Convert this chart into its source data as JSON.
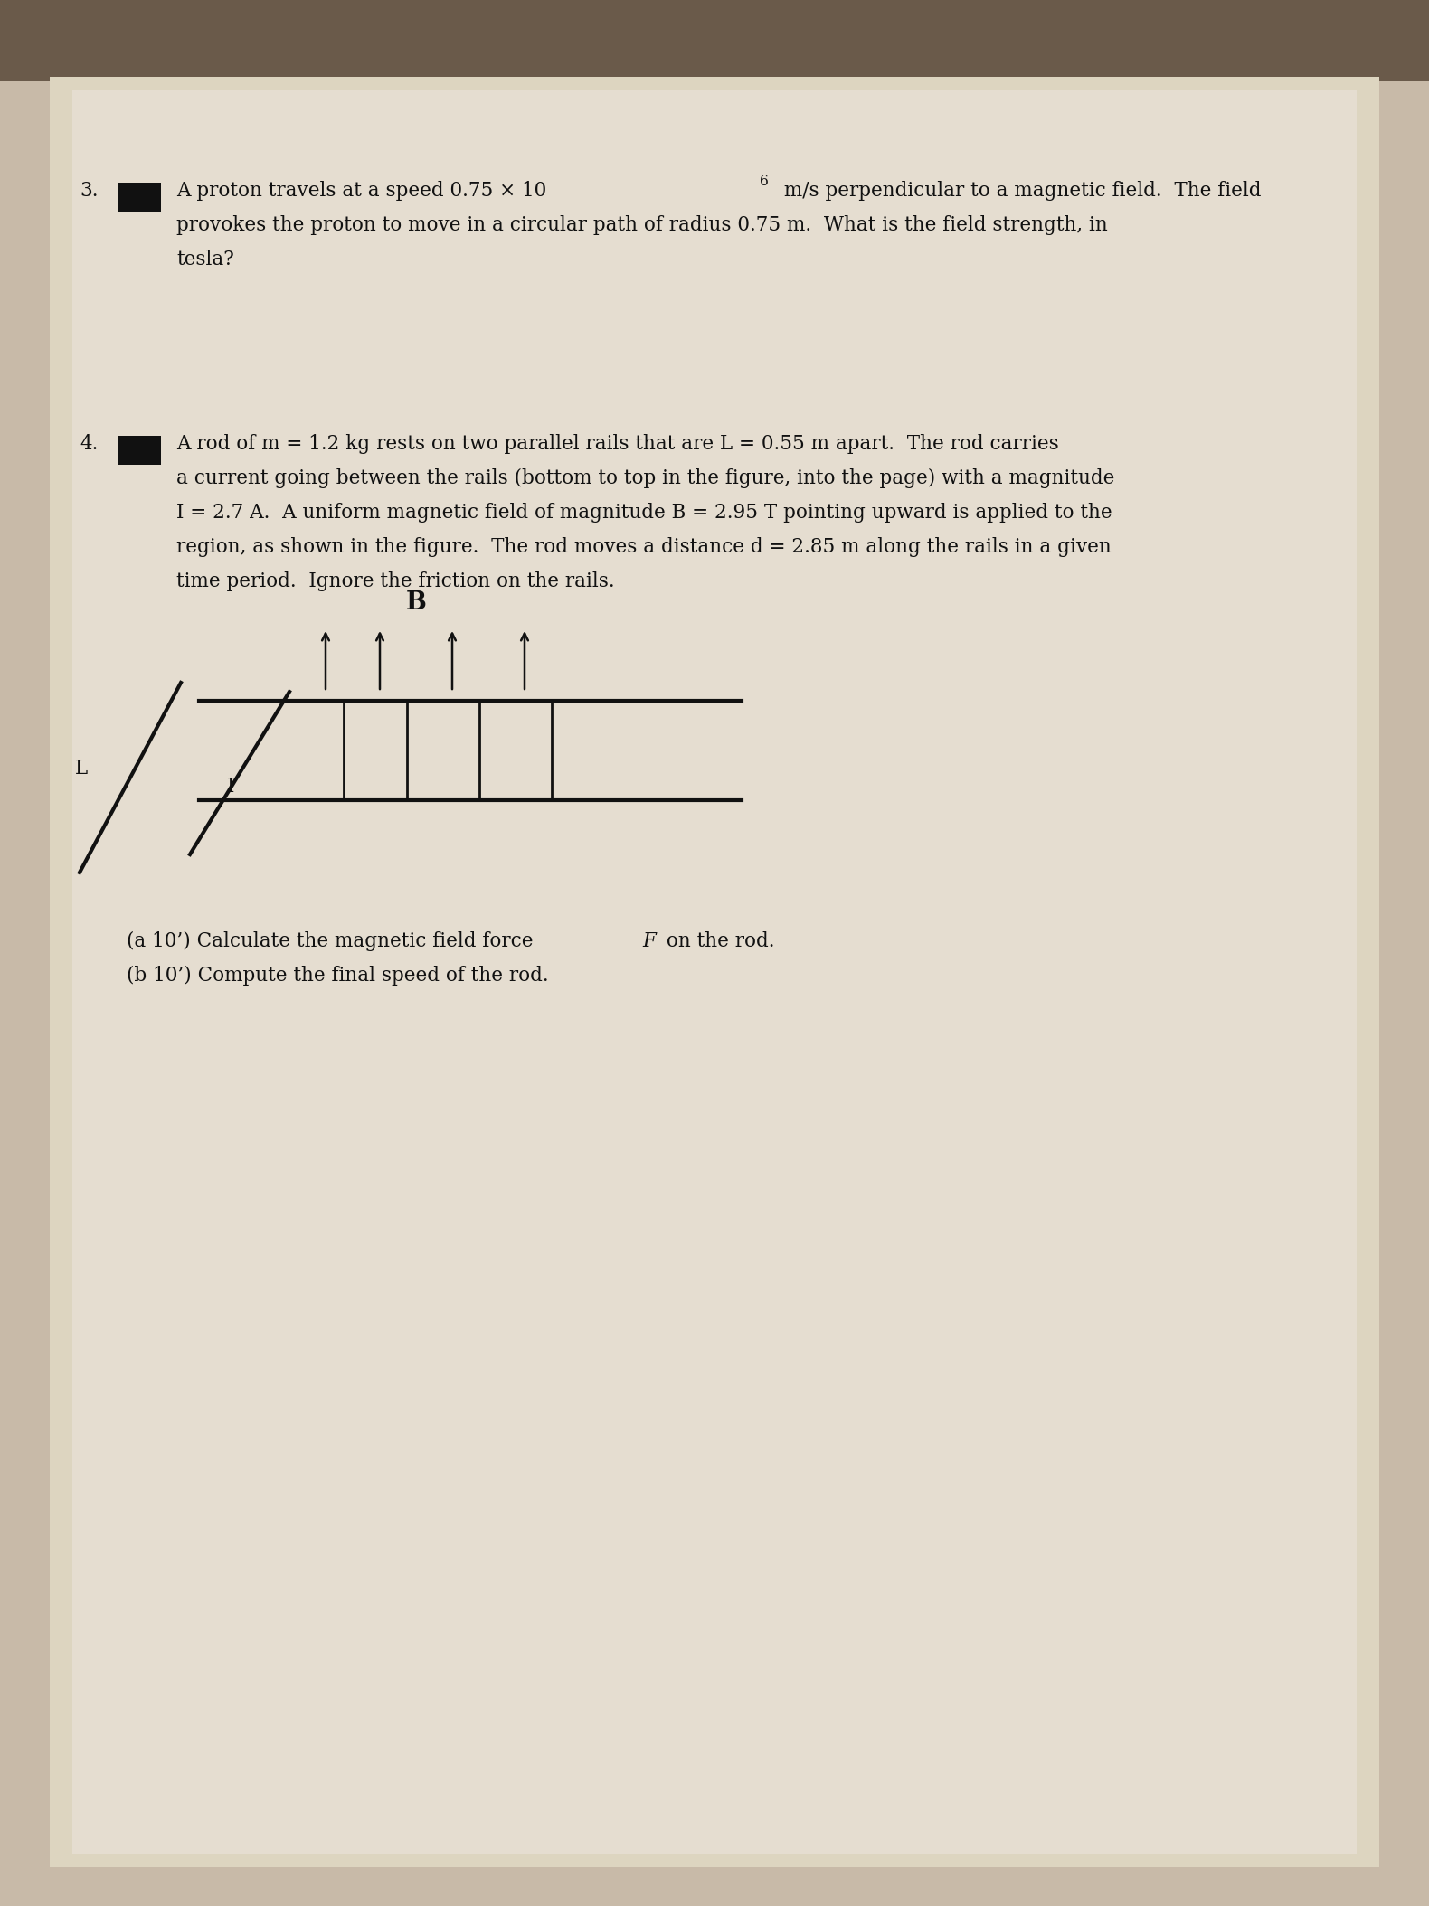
{
  "bg_top_color": "#8a7a6a",
  "bg_main_color": "#c8baa8",
  "paper_color": "#e8e0d0",
  "text_color": "#111111",
  "font_size_main": 15.5,
  "rail_color": "#111111",
  "q3_line1a": "A proton travels at a speed 0.75 × 10",
  "q3_sup": "6",
  "q3_line1b": " m/s perpendicular to a magnetic field.  The field",
  "q3_line2": "provokes the proton to move in a circular path of radius 0.75 m.  What is the field strength, in",
  "q3_line3": "tesla?",
  "q4_line1": "A rod of m = 1.2 kg rests on two parallel rails that are L = 0.55 m apart.  The rod carries",
  "q4_line2": "a current going between the rails (bottom to top in the figure, into the page) with a magnitude",
  "q4_line3": "I = 2.7 A.  A uniform magnetic field of magnitude B = 2.95 T pointing upward is applied to the",
  "q4_line4": "region, as shown in the figure.  The rod moves a distance d = 2.85 m along the rails in a given",
  "q4_line5": "time period.  Ignore the friction on the rails.",
  "qa_pre": "(a 10’) Calculate the magnetic field force ",
  "qa_F": "F",
  "qa_post": " on the rod.",
  "qb": "(b 10’) Compute the final speed of the rod."
}
